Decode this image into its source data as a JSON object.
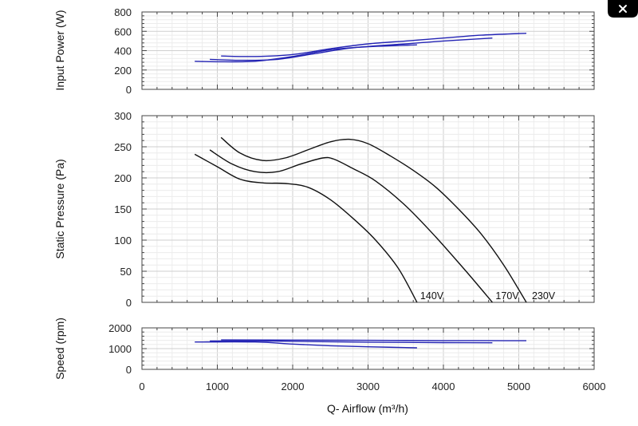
{
  "close_icon": "close-icon",
  "chart_data": {
    "type": "line",
    "xlabel": "Q- Airflow (m³/h)",
    "xlim": [
      0,
      6000
    ],
    "x_ticks": [
      "0",
      "1000",
      "2000",
      "3000",
      "4000",
      "5000",
      "6000"
    ],
    "curve_labels": [
      "140V",
      "170V",
      "230V"
    ],
    "panels": [
      {
        "id": "power",
        "ylabel": "Input Power (W)",
        "ylim": [
          0,
          800
        ],
        "y_ticks": [
          "0",
          "200",
          "400",
          "600",
          "800"
        ],
        "line_color": "#2424b4",
        "series": [
          {
            "x": [
              700,
              1000,
              1500,
              2000,
              2500,
              3000,
              3650
            ],
            "y": [
              290,
              285,
              290,
              340,
              410,
              440,
              460
            ]
          },
          {
            "x": [
              900,
              1300,
              1800,
              2300,
              2800,
              3500,
              4000,
              4650
            ],
            "y": [
              310,
              300,
              310,
              370,
              430,
              470,
              500,
              530
            ]
          },
          {
            "x": [
              1050,
              1500,
              2000,
              2500,
              3000,
              3500,
              4000,
              4500,
              5100
            ],
            "y": [
              345,
              340,
              360,
              420,
              470,
              500,
              530,
              560,
              580
            ]
          }
        ]
      },
      {
        "id": "pressure",
        "ylabel": "Static Pressure (Pa)",
        "ylim": [
          0,
          300
        ],
        "y_ticks": [
          "0",
          "50",
          "100",
          "150",
          "200",
          "250",
          "300"
        ],
        "line_color": "#111111",
        "series": [
          {
            "x": [
              700,
              1000,
              1300,
              1600,
              1900,
              2200,
              2500,
              2800,
              3100,
              3400,
              3650
            ],
            "y": [
              238,
              218,
              198,
              192,
              191,
              185,
              165,
              135,
              100,
              55,
              0
            ]
          },
          {
            "x": [
              900,
              1200,
              1500,
              1800,
              2100,
              2400,
              2550,
              2800,
              3100,
              3500,
              3900,
              4300,
              4650
            ],
            "y": [
              245,
              222,
              210,
              210,
              222,
              232,
              230,
              215,
              195,
              155,
              105,
              50,
              0
            ]
          },
          {
            "x": [
              1050,
              1300,
              1600,
              1900,
              2200,
              2500,
              2750,
              3000,
              3300,
              3600,
              3900,
              4200,
              4500,
              4800,
              5100
            ],
            "y": [
              265,
              240,
              228,
              232,
              245,
              258,
              262,
              255,
              235,
              212,
              185,
              150,
              110,
              60,
              0
            ]
          }
        ]
      },
      {
        "id": "speed",
        "ylabel": "Speed (rpm)",
        "ylim": [
          0,
          2000
        ],
        "y_ticks": [
          "0",
          "1000",
          "2000"
        ],
        "line_color": "#2424b4",
        "series": [
          {
            "x": [
              700,
              1500,
              2000,
              2500,
              3000,
              3650
            ],
            "y": [
              1320,
              1320,
              1220,
              1140,
              1090,
              1040
            ]
          },
          {
            "x": [
              900,
              1500,
              2000,
              2500,
              3000,
              3500,
              4000,
              4650
            ],
            "y": [
              1370,
              1370,
              1350,
              1330,
              1310,
              1300,
              1290,
              1280
            ]
          },
          {
            "x": [
              1050,
              2000,
              3000,
              4000,
              5100
            ],
            "y": [
              1420,
              1410,
              1400,
              1390,
              1380
            ]
          }
        ]
      }
    ]
  }
}
